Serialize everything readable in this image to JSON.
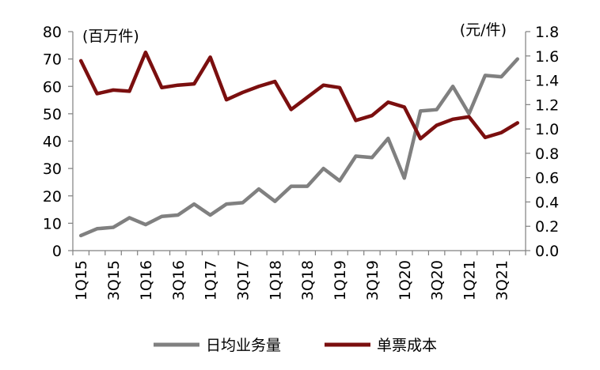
{
  "chart_data": {
    "type": "line",
    "categories": [
      "1Q15",
      "2Q15",
      "3Q15",
      "4Q15",
      "1Q16",
      "2Q16",
      "3Q16",
      "4Q16",
      "1Q17",
      "2Q17",
      "3Q17",
      "4Q17",
      "1Q18",
      "2Q18",
      "3Q18",
      "4Q18",
      "1Q19",
      "2Q19",
      "3Q19",
      "4Q19",
      "1Q20",
      "2Q20",
      "3Q20",
      "4Q20",
      "1Q21",
      "2Q21",
      "3Q21",
      "4Q21"
    ],
    "category_labels_shown": [
      "1Q15",
      "3Q15",
      "1Q16",
      "3Q16",
      "1Q17",
      "3Q17",
      "1Q18",
      "3Q18",
      "1Q19",
      "3Q19",
      "1Q20",
      "3Q20",
      "1Q21",
      "3Q21"
    ],
    "left_axis": {
      "unit_label": "(百万件)",
      "ylim": [
        0,
        80
      ],
      "ticks": [
        "0",
        "10",
        "20",
        "30",
        "40",
        "50",
        "60",
        "70",
        "80"
      ]
    },
    "right_axis": {
      "unit_label": "(元/件)",
      "ylim": [
        0.0,
        1.8
      ],
      "ticks": [
        "0.0",
        "0.2",
        "0.4",
        "0.6",
        "0.8",
        "1.0",
        "1.2",
        "1.4",
        "1.6",
        "1.8"
      ]
    },
    "series": [
      {
        "name": "日均业务量",
        "axis": "left",
        "color": "#808080",
        "values": [
          5.5,
          8,
          8.5,
          12,
          9.5,
          12.5,
          13,
          17,
          13,
          17,
          17.5,
          22.5,
          18,
          23.5,
          23.5,
          30,
          25.5,
          34.5,
          34,
          41,
          26.5,
          51,
          51.5,
          60,
          50,
          64,
          63.5,
          70
        ]
      },
      {
        "name": "单票成本",
        "axis": "right",
        "color": "#7b0f0f",
        "values": [
          1.56,
          1.29,
          1.32,
          1.31,
          1.63,
          1.34,
          1.36,
          1.37,
          1.59,
          1.24,
          1.3,
          1.35,
          1.39,
          1.16,
          1.26,
          1.36,
          1.34,
          1.07,
          1.11,
          1.22,
          1.18,
          0.92,
          1.03,
          1.08,
          1.1,
          0.93,
          0.97,
          1.05
        ]
      }
    ],
    "grid": false,
    "legend_position": "bottom-center"
  }
}
